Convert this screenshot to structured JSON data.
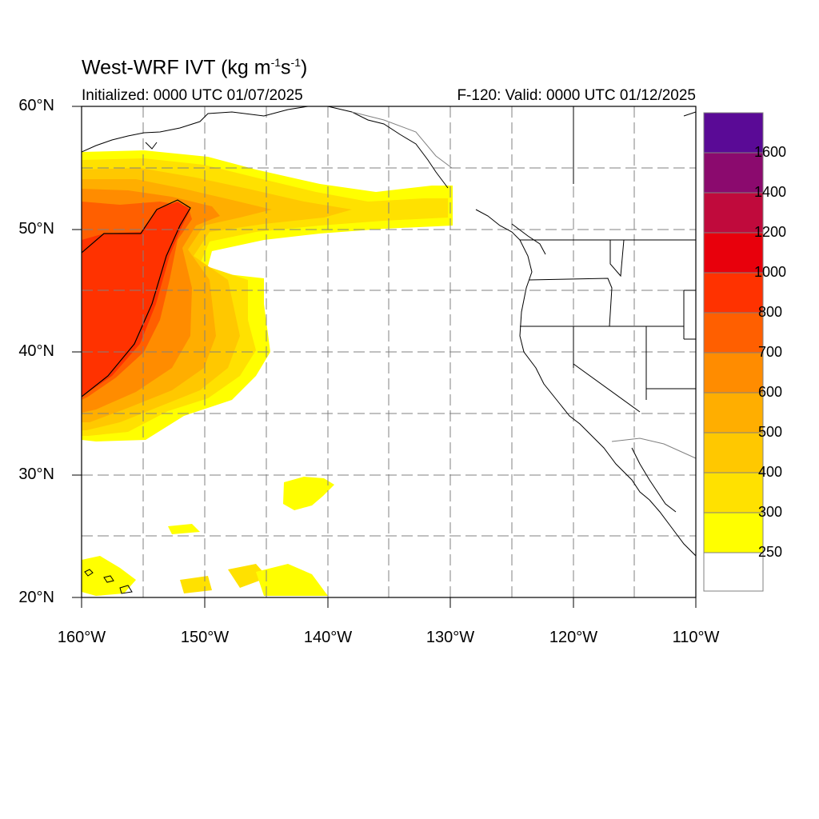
{
  "map": {
    "title_prefix": "West-WRF IVT (kg m",
    "title_exp1": "-1",
    "title_mid": "s",
    "title_exp2": "-1",
    "title_suffix": ")",
    "initialized": "Initialized: 0000 UTC 01/07/2025",
    "valid": "F-120: Valid: 0000 UTC 01/12/2025",
    "lat_labels": [
      "60°N",
      "50°N",
      "40°N",
      "30°N",
      "20°N"
    ],
    "lon_labels": [
      "160°W",
      "150°W",
      "140°W",
      "130°W",
      "120°W",
      "110°W"
    ],
    "extent": {
      "lon_min": -160,
      "lon_max": -110,
      "lat_min": 20,
      "lat_max": 60
    }
  },
  "colorbar": {
    "labels": [
      "1600",
      "1400",
      "1200",
      "1000",
      "800",
      "700",
      "600",
      "500",
      "400",
      "300",
      "250"
    ],
    "colors": [
      "#5a0a96",
      "#8b0a6e",
      "#c00a3c",
      "#e8000c",
      "#ff3200",
      "#ff5f00",
      "#ff8c00",
      "#ffae00",
      "#ffc800",
      "#ffe100",
      "#ffff00",
      "#ffffff"
    ]
  }
}
